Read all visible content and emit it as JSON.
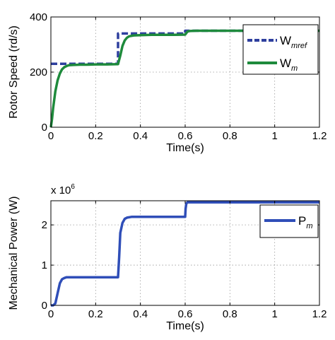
{
  "chart_data": [
    {
      "type": "line",
      "xlabel": "Time(s)",
      "ylabel": "Rotor Speed (rd/s)",
      "xlim": [
        0,
        1.2
      ],
      "ylim": [
        0,
        400
      ],
      "xticks": [
        "0",
        "0.2",
        "0.4",
        "0.6",
        "0.8",
        "1",
        "1.2"
      ],
      "yticks": [
        "0",
        "200",
        "400"
      ],
      "grid": true,
      "legend_position": "top-right",
      "series": [
        {
          "name": "W",
          "subscript": "mref",
          "color": "#2e3f9e",
          "style": "dashed",
          "x": [
            0,
            0.3,
            0.3,
            0.6,
            0.6,
            1.2
          ],
          "y": [
            230,
            230,
            340,
            340,
            350,
            350
          ]
        },
        {
          "name": "W",
          "subscript": "m",
          "color": "#1e8a3c",
          "style": "solid",
          "x": [
            0,
            0.005,
            0.01,
            0.02,
            0.03,
            0.04,
            0.05,
            0.06,
            0.07,
            0.08,
            0.1,
            0.13,
            0.16,
            0.2,
            0.25,
            0.3,
            0.31,
            0.32,
            0.33,
            0.34,
            0.35,
            0.37,
            0.4,
            0.45,
            0.5,
            0.55,
            0.6,
            0.61,
            0.62,
            0.65,
            0.7,
            0.8,
            0.9,
            1.0,
            1.1,
            1.2
          ],
          "y": [
            0,
            30,
            70,
            130,
            170,
            195,
            210,
            218,
            222,
            225,
            226,
            227,
            227,
            228,
            228,
            229,
            260,
            295,
            315,
            325,
            330,
            333,
            334,
            335,
            335,
            335,
            336,
            347,
            349,
            350,
            350,
            350,
            350,
            350,
            350,
            350
          ]
        }
      ]
    },
    {
      "type": "line",
      "xlabel": "Time(s)",
      "ylabel": "Mechanical Power (W)",
      "multiplier_base": "x 10",
      "multiplier_exp": "6",
      "xlim": [
        0,
        1.2
      ],
      "ylim": [
        0,
        2.6
      ],
      "xticks": [
        "0",
        "0.2",
        "0.4",
        "0.6",
        "0.8",
        "1",
        "1.2"
      ],
      "yticks": [
        "0",
        "1",
        "2"
      ],
      "grid": true,
      "legend_position": "top-right",
      "series": [
        {
          "name": "P",
          "subscript": "m",
          "color": "#2f4eb8",
          "style": "solid",
          "x": [
            0,
            0.01,
            0.02,
            0.03,
            0.04,
            0.05,
            0.06,
            0.07,
            0.1,
            0.2,
            0.3,
            0.305,
            0.31,
            0.32,
            0.33,
            0.34,
            0.36,
            0.4,
            0.5,
            0.6,
            0.602,
            0.605,
            0.61,
            0.7,
            0.8,
            0.9,
            1.0,
            1.1,
            1.2
          ],
          "y": [
            0,
            0,
            0.05,
            0.3,
            0.55,
            0.65,
            0.68,
            0.7,
            0.7,
            0.7,
            0.7,
            1.2,
            1.8,
            2.05,
            2.15,
            2.18,
            2.2,
            2.2,
            2.2,
            2.2,
            2.4,
            2.53,
            2.56,
            2.56,
            2.56,
            2.56,
            2.56,
            2.56,
            2.56
          ]
        }
      ]
    }
  ]
}
